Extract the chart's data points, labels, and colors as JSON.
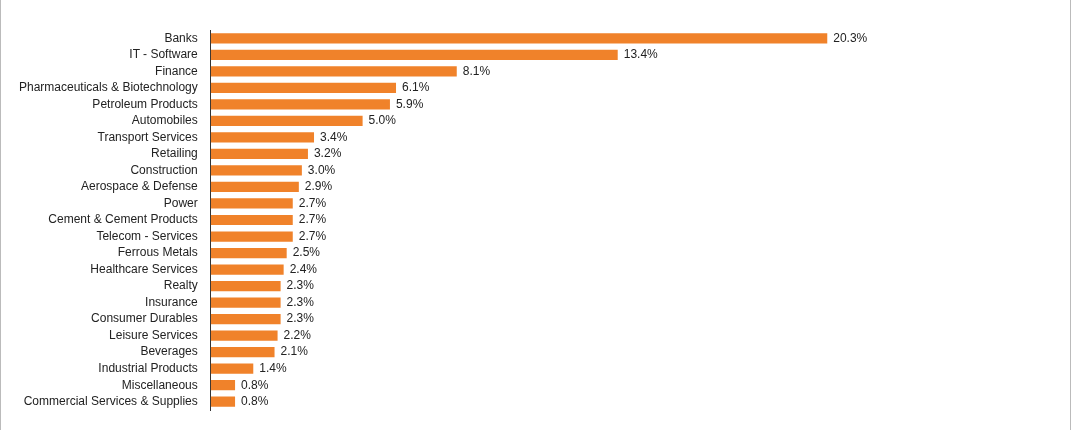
{
  "chart_data": {
    "type": "bar",
    "orientation": "horizontal",
    "categories": [
      "Banks",
      "IT - Software",
      "Finance",
      "Pharmaceuticals & Biotechnology",
      "Petroleum Products",
      "Automobiles",
      "Transport Services",
      "Retailing",
      "Construction",
      "Aerospace & Defense",
      "Power",
      "Cement & Cement Products",
      "Telecom - Services",
      "Ferrous Metals",
      "Healthcare Services",
      "Realty",
      "Insurance",
      "Consumer Durables",
      "Leisure Services",
      "Beverages",
      "Industrial Products",
      "Miscellaneous",
      "Commercial Services & Supplies"
    ],
    "values": [
      20.3,
      13.4,
      8.1,
      6.1,
      5.9,
      5.0,
      3.4,
      3.2,
      3.0,
      2.9,
      2.7,
      2.7,
      2.7,
      2.5,
      2.4,
      2.3,
      2.3,
      2.3,
      2.2,
      2.1,
      1.4,
      0.8,
      0.8
    ],
    "value_labels": [
      "20.3%",
      "13.4%",
      "8.1%",
      "6.1%",
      "5.9%",
      "5.0%",
      "3.4%",
      "3.2%",
      "3.0%",
      "2.9%",
      "2.7%",
      "2.7%",
      "2.7%",
      "2.5%",
      "2.4%",
      "2.3%",
      "2.3%",
      "2.3%",
      "2.2%",
      "2.1%",
      "1.4%",
      "0.8%",
      "0.8%"
    ],
    "color": "#f0822a",
    "grid": false,
    "legend": false
  }
}
